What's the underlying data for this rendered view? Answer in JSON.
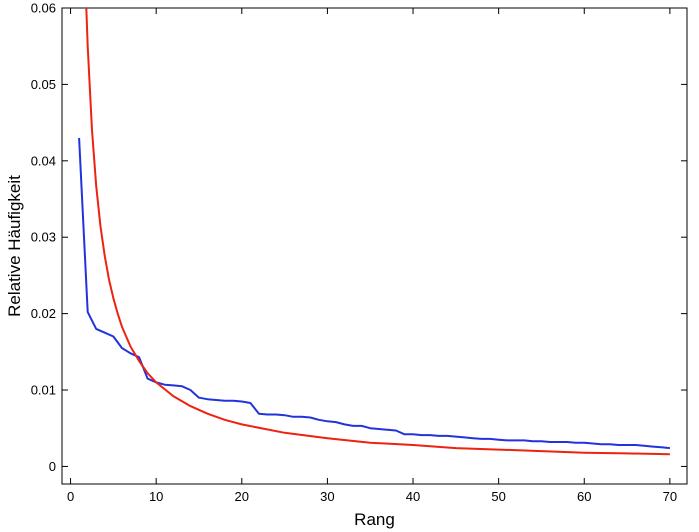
{
  "chart_data": {
    "type": "line",
    "xlabel": "Rang",
    "ylabel": "Relative Häufigkeit",
    "xlim": [
      -1,
      72
    ],
    "ylim": [
      -0.0023,
      0.06
    ],
    "xticks": [
      0,
      10,
      20,
      30,
      40,
      50,
      60,
      70
    ],
    "yticks": [
      0,
      0.01,
      0.02,
      0.03,
      0.04,
      0.05,
      0.06
    ],
    "ytick_labels": [
      "0",
      "0.01",
      "0.02",
      "0.03",
      "0.04",
      "0.05",
      "0.06"
    ],
    "grid": false,
    "legend": "none",
    "series": [
      {
        "color": "#2233dd",
        "x": [
          1,
          2,
          3,
          4,
          5,
          6,
          7,
          8,
          9,
          10,
          11,
          12,
          13,
          14,
          15,
          16,
          17,
          18,
          19,
          20,
          21,
          22,
          23,
          24,
          25,
          26,
          27,
          28,
          29,
          30,
          31,
          32,
          33,
          34,
          35,
          36,
          37,
          38,
          39,
          40,
          41,
          42,
          43,
          44,
          45,
          46,
          47,
          48,
          49,
          50,
          51,
          52,
          53,
          54,
          55,
          56,
          57,
          58,
          59,
          60,
          61,
          62,
          63,
          64,
          65,
          66,
          67,
          68,
          69,
          70
        ],
        "y": [
          0.043,
          0.0202,
          0.018,
          0.0175,
          0.017,
          0.0155,
          0.0148,
          0.0143,
          0.0115,
          0.011,
          0.0107,
          0.0106,
          0.0105,
          0.01,
          0.009,
          0.0088,
          0.0087,
          0.0086,
          0.0086,
          0.0085,
          0.0083,
          0.0069,
          0.0068,
          0.0068,
          0.0067,
          0.0065,
          0.0065,
          0.0064,
          0.0061,
          0.0059,
          0.0058,
          0.0055,
          0.0053,
          0.0053,
          0.005,
          0.0049,
          0.0048,
          0.0047,
          0.0042,
          0.0042,
          0.0041,
          0.0041,
          0.004,
          0.004,
          0.0039,
          0.0038,
          0.0037,
          0.0036,
          0.0036,
          0.0035,
          0.0034,
          0.0034,
          0.0034,
          0.0033,
          0.0033,
          0.0032,
          0.0032,
          0.0032,
          0.0031,
          0.0031,
          0.003,
          0.0029,
          0.0029,
          0.0028,
          0.0028,
          0.0028,
          0.0027,
          0.0026,
          0.0025,
          0.0024
        ]
      },
      {
        "color": "#ee2211",
        "function": "0.11 / x",
        "x": [
          1.833,
          2,
          2.5,
          3,
          3.5,
          4,
          4.5,
          5,
          5.5,
          6,
          7,
          8,
          9,
          10,
          12,
          14,
          16,
          18,
          20,
          25,
          30,
          35,
          40,
          45,
          50,
          55,
          60,
          65,
          70
        ],
        "y": [
          0.06,
          0.055,
          0.044,
          0.0367,
          0.0314,
          0.0275,
          0.0244,
          0.022,
          0.02,
          0.0183,
          0.0157,
          0.0138,
          0.0122,
          0.011,
          0.0092,
          0.0079,
          0.0069,
          0.0061,
          0.0055,
          0.0044,
          0.0037,
          0.0031,
          0.0028,
          0.0024,
          0.0022,
          0.002,
          0.0018,
          0.0017,
          0.0016
        ]
      }
    ]
  }
}
